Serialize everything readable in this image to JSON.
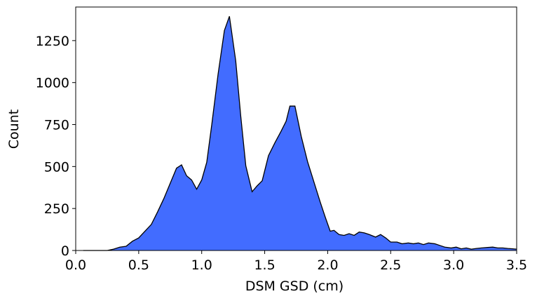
{
  "chart_data": {
    "type": "area",
    "xlabel": "DSM GSD (cm)",
    "ylabel": "Count",
    "color": "#426cff",
    "edgecolor": "#000000",
    "x": [
      0.06,
      0.25,
      0.3,
      0.35,
      0.4,
      0.45,
      0.5,
      0.55,
      0.6,
      0.65,
      0.7,
      0.75,
      0.8,
      0.84,
      0.88,
      0.92,
      0.96,
      1.0,
      1.04,
      1.08,
      1.13,
      1.18,
      1.22,
      1.27,
      1.31,
      1.35,
      1.4,
      1.44,
      1.48,
      1.53,
      1.58,
      1.63,
      1.67,
      1.7,
      1.74,
      1.79,
      1.84,
      1.89,
      1.94,
      1.98,
      2.02,
      2.05,
      2.09,
      2.13,
      2.17,
      2.21,
      2.25,
      2.29,
      2.33,
      2.38,
      2.42,
      2.46,
      2.5,
      2.55,
      2.59,
      2.64,
      2.68,
      2.72,
      2.76,
      2.8,
      2.85,
      2.89,
      2.93,
      2.98,
      3.02,
      3.06,
      3.1,
      3.14,
      3.18,
      3.22,
      3.27,
      3.31,
      3.35,
      3.39,
      3.43,
      3.47,
      3.5
    ],
    "values": [
      0,
      0,
      8,
      20,
      25,
      55,
      75,
      115,
      155,
      230,
      310,
      400,
      490,
      510,
      445,
      420,
      365,
      420,
      525,
      750,
      1050,
      1310,
      1395,
      1130,
      800,
      505,
      350,
      385,
      415,
      565,
      640,
      710,
      770,
      860,
      860,
      680,
      530,
      410,
      290,
      200,
      115,
      120,
      95,
      90,
      100,
      90,
      110,
      105,
      95,
      80,
      95,
      75,
      50,
      50,
      40,
      45,
      40,
      45,
      35,
      45,
      40,
      30,
      20,
      15,
      20,
      10,
      15,
      8,
      12,
      15,
      18,
      20,
      15,
      15,
      12,
      10,
      8
    ],
    "xlim": [
      0,
      3.5
    ],
    "xticks": [
      {
        "value": 0,
        "label": "0.0"
      },
      0.5,
      {
        "value": 1,
        "label": "1.0"
      },
      1.5,
      {
        "value": 2,
        "label": "2.0"
      },
      2.5,
      {
        "value": 3,
        "label": "3.0"
      },
      3.5
    ],
    "ylim": [
      0,
      1450
    ],
    "yticks": [
      0,
      250,
      500,
      750,
      1000,
      1250
    ],
    "grid": false
  }
}
